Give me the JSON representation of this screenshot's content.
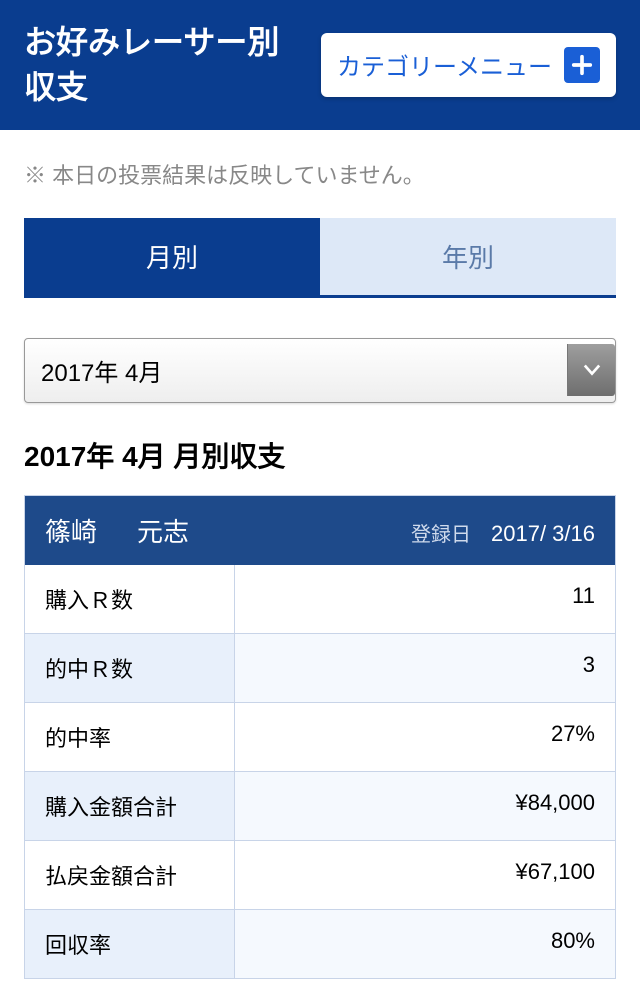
{
  "header": {
    "title": "お好みレーサー別収支",
    "category_button": "カテゴリーメニュー"
  },
  "notice": "※ 本日の投票結果は反映していません。",
  "tabs": {
    "monthly": "月別",
    "yearly": "年別"
  },
  "period_select": "2017年 4月",
  "section_title": "2017年 4月 月別収支",
  "racer": {
    "surname": "篠崎",
    "given_name": "元志",
    "reg_label": "登録日",
    "reg_date": "2017/ 3/16"
  },
  "stats": [
    {
      "label": "購入Ｒ数",
      "value": "11"
    },
    {
      "label": "的中Ｒ数",
      "value": "3"
    },
    {
      "label": "的中率",
      "value": "27%"
    },
    {
      "label": "購入金額合計",
      "value": "¥84,000"
    },
    {
      "label": "払戻金額合計",
      "value": "¥67,100"
    },
    {
      "label": "回収率",
      "value": "80%"
    }
  ]
}
